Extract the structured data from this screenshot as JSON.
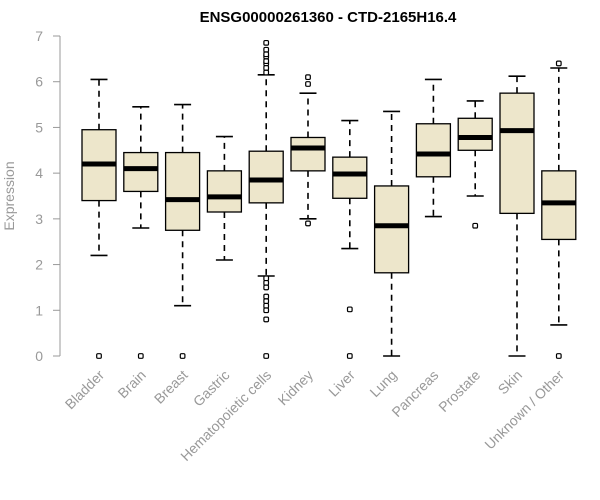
{
  "chart_data": {
    "type": "boxplot",
    "title": "ENSG00000261360 - CTD-2165H16.4",
    "xlabel": "",
    "ylabel": "Expression",
    "ylim": [
      0,
      7
    ],
    "yticks": [
      0,
      1,
      2,
      3,
      4,
      5,
      6,
      7
    ],
    "categories": [
      "Bladder",
      "Brain",
      "Breast",
      "Gastric",
      "Hematopoietic cells",
      "Kidney",
      "Liver",
      "Lung",
      "Pancreas",
      "Prostate",
      "Skin",
      "Unknown / Other"
    ],
    "boxes": [
      {
        "whisker_low": 2.2,
        "q1": 3.4,
        "median": 4.2,
        "q3": 4.95,
        "whisker_high": 6.05,
        "outliers": [
          0
        ]
      },
      {
        "whisker_low": 2.8,
        "q1": 3.6,
        "median": 4.1,
        "q3": 4.45,
        "whisker_high": 5.45,
        "outliers": [
          0
        ]
      },
      {
        "whisker_low": 1.1,
        "q1": 2.75,
        "median": 3.42,
        "q3": 4.45,
        "whisker_high": 5.5,
        "outliers": [
          0
        ]
      },
      {
        "whisker_low": 2.1,
        "q1": 3.15,
        "median": 3.48,
        "q3": 4.05,
        "whisker_high": 4.8,
        "outliers": []
      },
      {
        "whisker_low": 1.75,
        "q1": 3.35,
        "median": 3.85,
        "q3": 4.48,
        "whisker_high": 6.15,
        "outliers": [
          6.85,
          6.7,
          6.55,
          6.4,
          6.3,
          6.2,
          6.6,
          6.45,
          1.7,
          1.6,
          1.5,
          1.3,
          1.2,
          1.1,
          1.0,
          0.8,
          0
        ]
      },
      {
        "whisker_low": 3.0,
        "q1": 4.05,
        "median": 4.55,
        "q3": 4.78,
        "whisker_high": 5.75,
        "outliers": [
          6.1,
          5.95,
          2.9
        ]
      },
      {
        "whisker_low": 2.35,
        "q1": 3.45,
        "median": 3.98,
        "q3": 4.35,
        "whisker_high": 5.15,
        "outliers": [
          1.02,
          0
        ]
      },
      {
        "whisker_low": 0.0,
        "q1": 1.82,
        "median": 2.85,
        "q3": 3.72,
        "whisker_high": 5.35,
        "outliers": []
      },
      {
        "whisker_low": 3.05,
        "q1": 3.92,
        "median": 4.42,
        "q3": 5.08,
        "whisker_high": 6.05,
        "outliers": []
      },
      {
        "whisker_low": 3.5,
        "q1": 4.5,
        "median": 4.78,
        "q3": 5.2,
        "whisker_high": 5.58,
        "outliers": [
          2.85
        ]
      },
      {
        "whisker_low": 0.0,
        "q1": 3.12,
        "median": 4.93,
        "q3": 5.75,
        "whisker_high": 6.12,
        "outliers": []
      },
      {
        "whisker_low": 0.68,
        "q1": 2.55,
        "median": 3.35,
        "q3": 4.05,
        "whisker_high": 6.3,
        "outliers": [
          6.4,
          0
        ]
      }
    ],
    "colors": {
      "box_fill": "#ede6cb",
      "stroke": "#000000",
      "axis": "#999999"
    },
    "grid": false,
    "legend": "none"
  }
}
